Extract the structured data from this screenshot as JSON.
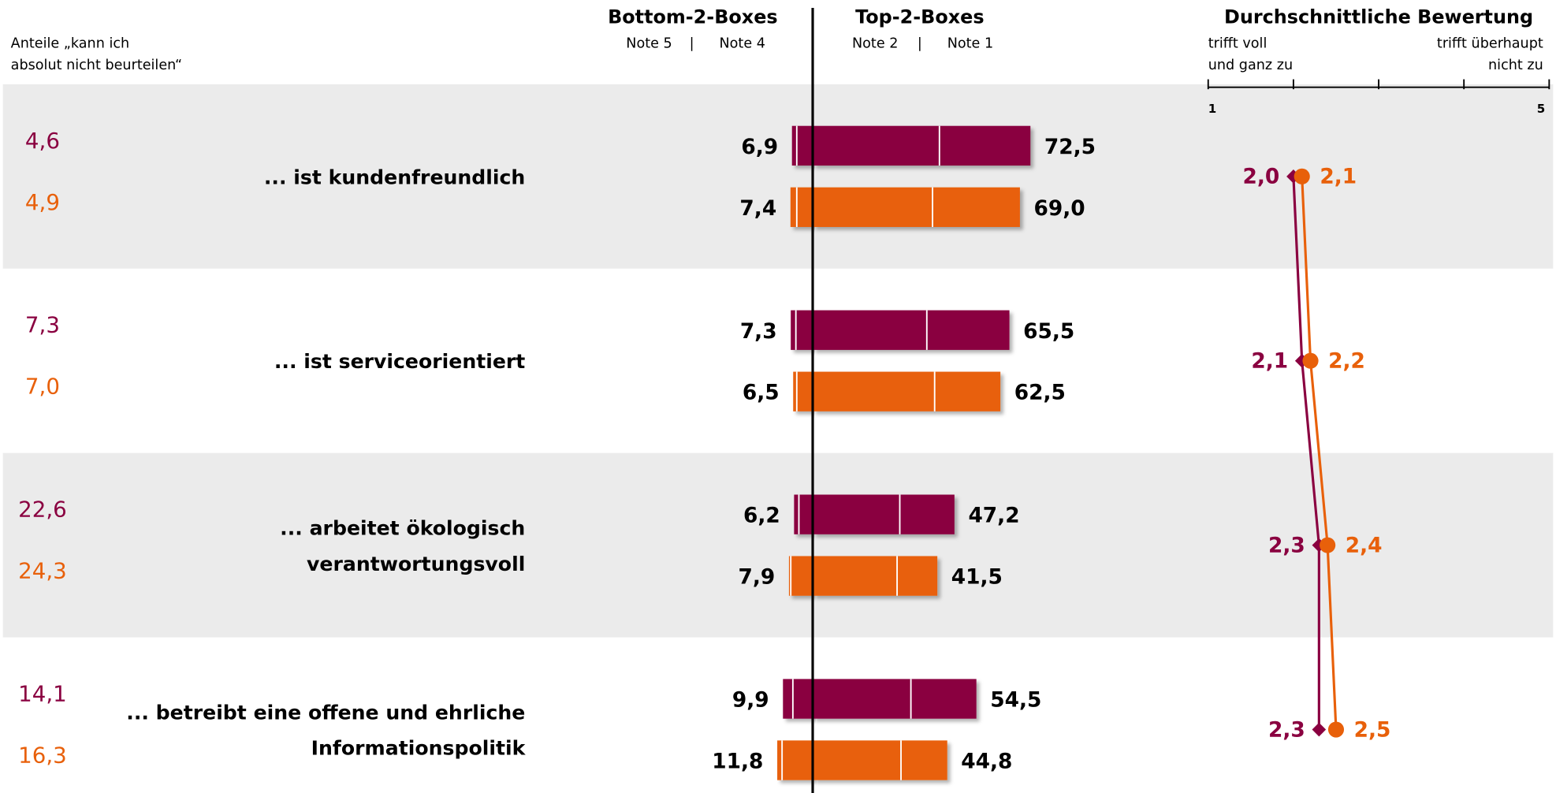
{
  "chart_data": {
    "type": "diverging-bar-with-mean",
    "unknown_header": [
      "Anteile „kann ich",
      "absolut nicht beurteilen“"
    ],
    "bottom_header": "Bottom-2-Boxes",
    "bottom_notes": [
      "Note 5",
      "Note 4"
    ],
    "top_header": "Top-2-Boxes",
    "top_notes": [
      "Note 2",
      "Note 1"
    ],
    "separator": "|",
    "mean_header": "Durchschnittliche Bewertung",
    "mean_left": [
      "trifft voll",
      "und ganz zu"
    ],
    "mean_right": [
      "trifft überhaupt",
      "nicht zu"
    ],
    "mean_ticks": [
      1,
      2,
      3,
      4,
      5
    ],
    "categories": [
      [
        "... ist kundenfreundlich"
      ],
      [
        "... ist serviceorientiert"
      ],
      [
        "... arbeitet ökologisch",
        "verantwortungsvoll"
      ],
      [
        "... betreibt eine offene und ehrliche",
        "Informationspolitik"
      ]
    ],
    "series": [
      {
        "color": "#8a0040",
        "marker": "diamond",
        "unknown": [
          4.6,
          7.3,
          22.6,
          14.1
        ],
        "unknown_labels": [
          "4,6",
          "7,3",
          "22,6",
          "14,1"
        ],
        "bottom2": [
          6.9,
          7.3,
          6.2,
          9.9
        ],
        "bottom2_labels": [
          "6,9",
          "7,3",
          "6,2",
          "9,9"
        ],
        "note4": [
          5.3,
          5.6,
          4.6,
          6.6
        ],
        "top2": [
          72.5,
          65.5,
          47.2,
          54.5
        ],
        "top2_labels": [
          "72,5",
          "65,5",
          "47,2",
          "54,5"
        ],
        "note2": [
          42.2,
          38.0,
          29.0,
          32.7
        ],
        "mean": [
          2.0,
          2.1,
          2.3,
          2.3
        ],
        "mean_labels": [
          "2,0",
          "2,1",
          "2,3",
          "2,3"
        ]
      },
      {
        "color": "#e8600a",
        "marker": "circle",
        "unknown": [
          4.9,
          7.0,
          24.3,
          16.3
        ],
        "unknown_labels": [
          "4,9",
          "7,0",
          "24,3",
          "16,3"
        ],
        "bottom2": [
          7.4,
          6.5,
          7.9,
          11.8
        ],
        "bottom2_labels": [
          "7,4",
          "6,5",
          "7,9",
          "11,8"
        ],
        "note4": [
          5.3,
          5.3,
          7.3,
          10.2
        ],
        "top2": [
          69.0,
          62.5,
          41.5,
          44.8
        ],
        "top2_labels": [
          "69,0",
          "62,5",
          "41,5",
          "44,8"
        ],
        "note2": [
          39.9,
          40.6,
          28.1,
          29.4
        ],
        "mean": [
          2.1,
          2.2,
          2.4,
          2.5
        ],
        "mean_labels": [
          "2,1",
          "2,2",
          "2,4",
          "2,5"
        ]
      }
    ]
  }
}
